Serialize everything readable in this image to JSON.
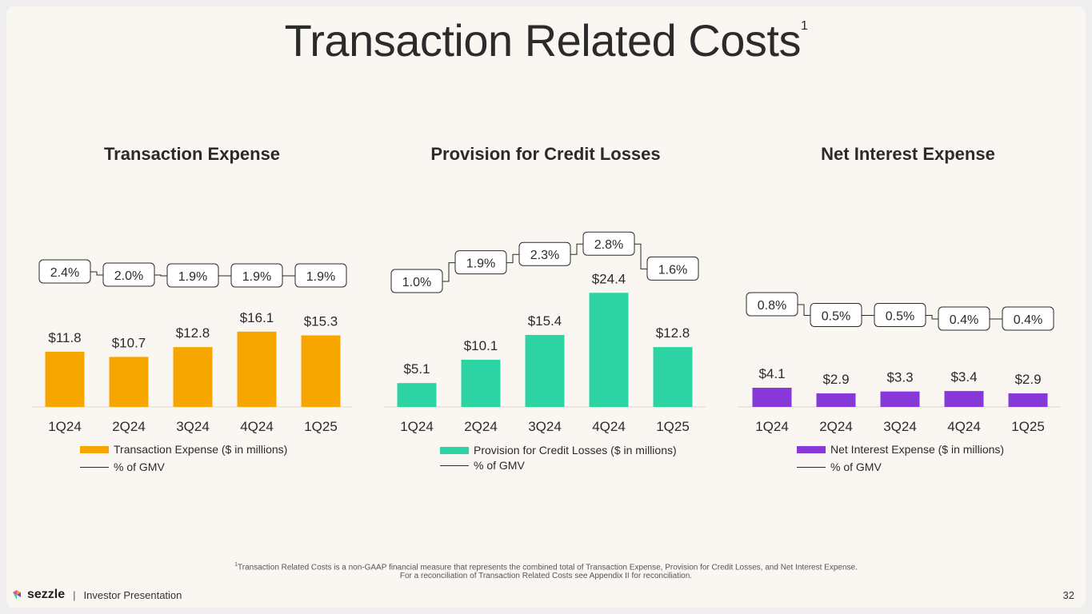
{
  "title": "Transaction Related Costs",
  "title_footnote_mark": "1",
  "colors": {
    "expense": "#f7a600",
    "credit": "#2dd4a3",
    "interest": "#8638d9",
    "text": "#2b2b2b"
  },
  "chart_data": [
    {
      "type": "bar",
      "title": "Transaction Expense",
      "categories": [
        "1Q24",
        "2Q24",
        "3Q24",
        "4Q24",
        "1Q25"
      ],
      "values": [
        11.8,
        10.7,
        12.8,
        16.1,
        15.3
      ],
      "value_labels": [
        "$11.8",
        "$10.7",
        "$12.8",
        "$16.1",
        "$15.3"
      ],
      "pct_of_gmv": [
        2.4,
        2.0,
        1.9,
        1.9,
        1.9
      ],
      "pct_labels": [
        "2.4%",
        "2.0%",
        "1.9%",
        "1.9%",
        "1.9%"
      ],
      "legend": {
        "bars": "Transaction Expense ($ in millions)",
        "line": "% of GMV"
      },
      "ylim": [
        0,
        30
      ],
      "color_key": "expense"
    },
    {
      "type": "bar",
      "title": "Provision for Credit Losses",
      "categories": [
        "1Q24",
        "2Q24",
        "3Q24",
        "4Q24",
        "1Q25"
      ],
      "values": [
        5.1,
        10.1,
        15.4,
        24.4,
        12.8
      ],
      "value_labels": [
        "$5.1",
        "$10.1",
        "$15.4",
        "$24.4",
        "$12.8"
      ],
      "pct_of_gmv": [
        1.0,
        1.9,
        2.3,
        2.8,
        1.6
      ],
      "pct_labels": [
        "1.0%",
        "1.9%",
        "2.3%",
        "2.8%",
        "1.6%"
      ],
      "legend": {
        "bars": "Provision for Credit Losses ($ in millions)",
        "line": "% of GMV"
      },
      "ylim": [
        0,
        30
      ],
      "color_key": "credit"
    },
    {
      "type": "bar",
      "title": "Net Interest Expense",
      "categories": [
        "1Q24",
        "2Q24",
        "3Q24",
        "4Q24",
        "1Q25"
      ],
      "values": [
        4.1,
        2.9,
        3.3,
        3.4,
        2.9
      ],
      "value_labels": [
        "$4.1",
        "$2.9",
        "$3.3",
        "$3.4",
        "$2.9"
      ],
      "pct_of_gmv": [
        0.8,
        0.5,
        0.5,
        0.4,
        0.4
      ],
      "pct_labels": [
        "0.8%",
        "0.5%",
        "0.5%",
        "0.4%",
        "0.4%"
      ],
      "legend": {
        "bars": "Net Interest Expense ($ in millions)",
        "line": "% of GMV"
      },
      "ylim": [
        0,
        30
      ],
      "color_key": "interest"
    }
  ],
  "footnote": {
    "mark": "1",
    "line1": "Transaction Related Costs is a non-GAAP financial measure that represents the combined total of Transaction Expense, Provision for Credit Losses, and Net Interest Expense.",
    "line2": "For a reconciliation of Transaction Related Costs see Appendix II for reconciliation."
  },
  "footer": {
    "brand": "sezzle",
    "divider": "|",
    "label": "Investor Presentation",
    "page": "32"
  }
}
